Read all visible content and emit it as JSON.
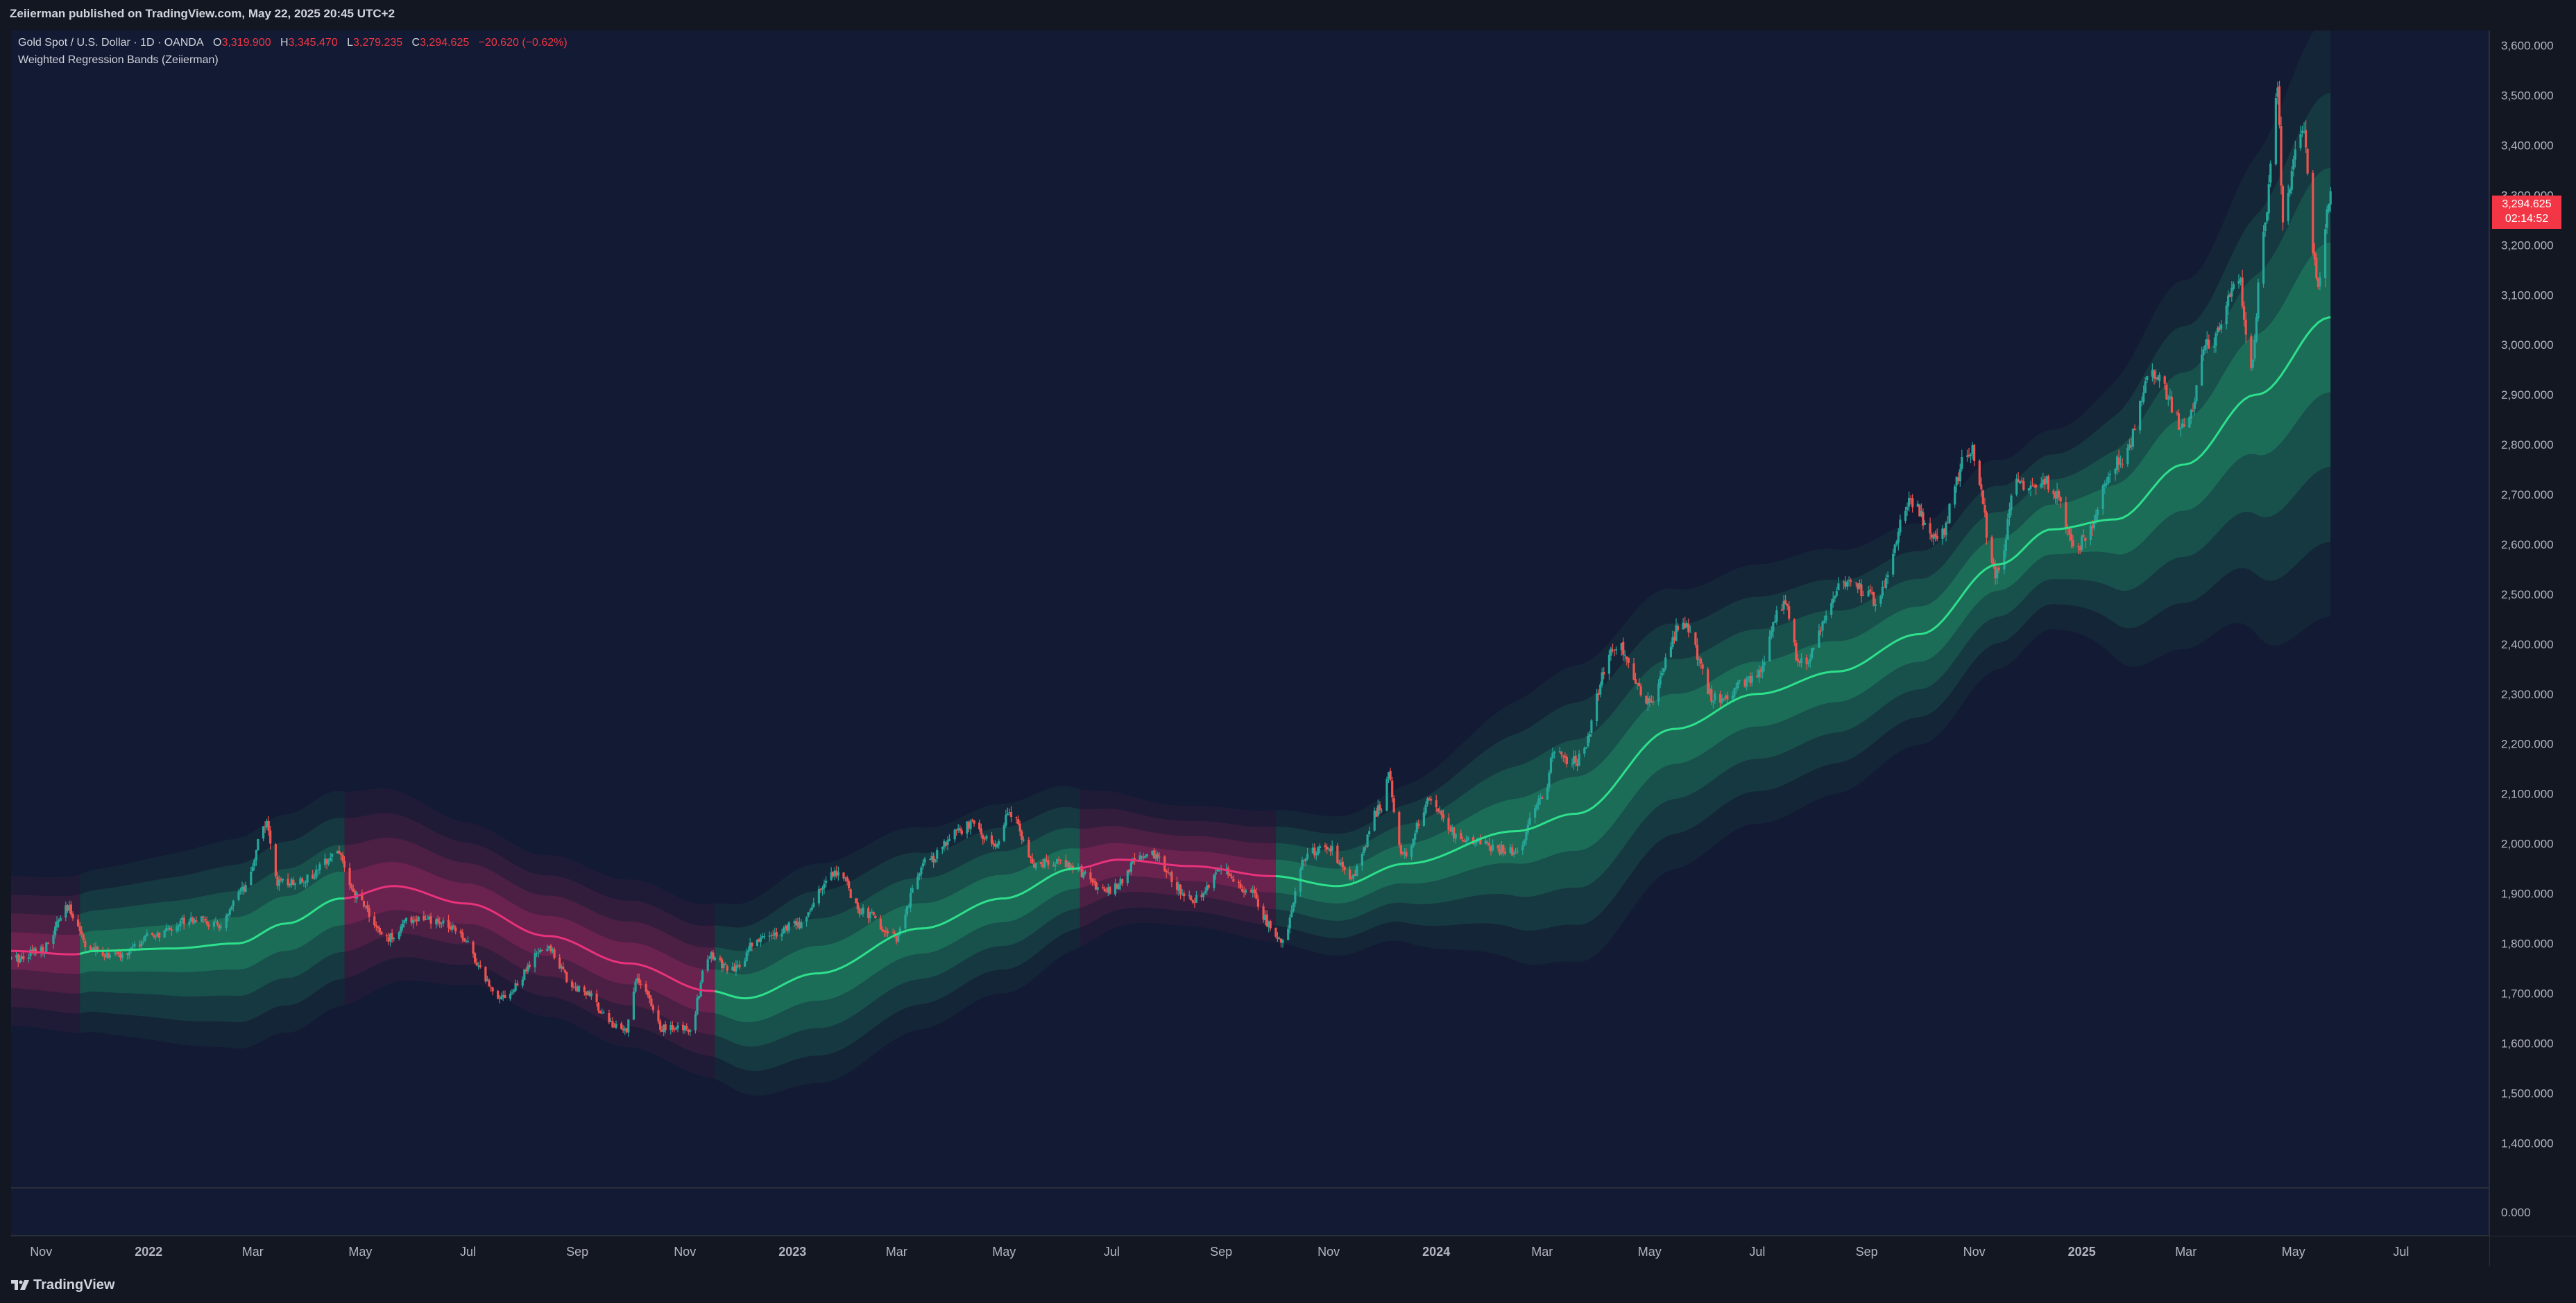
{
  "header": {
    "published": "Zeiierman published on TradingView.com, May 22, 2025 20:45 UTC+2"
  },
  "legend": {
    "symbol": "Gold Spot / U.S. Dollar · 1D · OANDA",
    "open_label": "O",
    "open": "3,319.900",
    "high_label": "H",
    "high": "3,345.470",
    "low_label": "L",
    "low": "3,279.235",
    "close_label": "C",
    "close": "3,294.625",
    "change": "−20.620 (−0.62%)",
    "indicator": "Weighted Regression Bands (Zeiierman)"
  },
  "price_label": {
    "price": "3,294.625",
    "countdown": "02:14:52"
  },
  "footer": {
    "brand": "TradingView"
  },
  "colors": {
    "background": "#131a33",
    "up": "#26a69a",
    "down": "#ef5350",
    "bull_line": "#2ee08c",
    "bear_line": "#e8337a",
    "price_tag": "#f23645"
  },
  "chart_data": {
    "type": "candlestick",
    "title": "Gold Spot / U.S. Dollar · 1D · OANDA",
    "y_axis": {
      "range": [
        1310,
        3630
      ],
      "ticks": [
        {
          "v": 1400,
          "label": "1,400.000"
        },
        {
          "v": 1500,
          "label": "1,500.000"
        },
        {
          "v": 1600,
          "label": "1,600.000"
        },
        {
          "v": 1700,
          "label": "1,700.000"
        },
        {
          "v": 1800,
          "label": "1,800.000"
        },
        {
          "v": 1900,
          "label": "1,900.000"
        },
        {
          "v": 2000,
          "label": "2,000.000"
        },
        {
          "v": 2100,
          "label": "2,100.000"
        },
        {
          "v": 2200,
          "label": "2,200.000"
        },
        {
          "v": 2300,
          "label": "2,300.000"
        },
        {
          "v": 2400,
          "label": "2,400.000"
        },
        {
          "v": 2500,
          "label": "2,500.000"
        },
        {
          "v": 2600,
          "label": "2,600.000"
        },
        {
          "v": 2700,
          "label": "2,700.000"
        },
        {
          "v": 2800,
          "label": "2,800.000"
        },
        {
          "v": 2900,
          "label": "2,900.000"
        },
        {
          "v": 3000,
          "label": "3,000.000"
        },
        {
          "v": 3100,
          "label": "3,100.000"
        },
        {
          "v": 3200,
          "label": "3,200.000"
        },
        {
          "v": 3300,
          "label": "3,300.000"
        },
        {
          "v": 3400,
          "label": "3,400.000"
        },
        {
          "v": 3500,
          "label": "3,500.000"
        },
        {
          "v": 3600,
          "label": "3,600.000"
        }
      ],
      "indicator_pane_label": "0.000"
    },
    "x_axis": {
      "range": [
        "2021-10-15",
        "2025-08-20"
      ],
      "ticks": [
        {
          "date": "2021-11-01",
          "label": "Nov"
        },
        {
          "date": "2022-01-01",
          "label": "2022",
          "bold": true
        },
        {
          "date": "2022-03-01",
          "label": "Mar"
        },
        {
          "date": "2022-05-01",
          "label": "May"
        },
        {
          "date": "2022-07-01",
          "label": "Jul"
        },
        {
          "date": "2022-09-01",
          "label": "Sep"
        },
        {
          "date": "2022-11-01",
          "label": "Nov"
        },
        {
          "date": "2023-01-01",
          "label": "2023",
          "bold": true
        },
        {
          "date": "2023-03-01",
          "label": "Mar"
        },
        {
          "date": "2023-05-01",
          "label": "May"
        },
        {
          "date": "2023-07-01",
          "label": "Jul"
        },
        {
          "date": "2023-09-01",
          "label": "Sep"
        },
        {
          "date": "2023-11-01",
          "label": "Nov"
        },
        {
          "date": "2024-01-01",
          "label": "2024",
          "bold": true
        },
        {
          "date": "2024-03-01",
          "label": "Mar"
        },
        {
          "date": "2024-05-01",
          "label": "May"
        },
        {
          "date": "2024-07-01",
          "label": "Jul"
        },
        {
          "date": "2024-09-01",
          "label": "Sep"
        },
        {
          "date": "2024-11-01",
          "label": "Nov"
        },
        {
          "date": "2025-01-01",
          "label": "2025",
          "bold": true
        },
        {
          "date": "2025-03-01",
          "label": "Mar"
        },
        {
          "date": "2025-05-01",
          "label": "May"
        },
        {
          "date": "2025-07-01",
          "label": "Jul"
        }
      ]
    },
    "price_path": [
      [
        "2021-10-15",
        1768
      ],
      [
        "2021-11-02",
        1790
      ],
      [
        "2021-11-16",
        1868
      ],
      [
        "2021-11-30",
        1785
      ],
      [
        "2021-12-15",
        1775
      ],
      [
        "2022-01-04",
        1815
      ],
      [
        "2022-01-25",
        1850
      ],
      [
        "2022-02-10",
        1835
      ],
      [
        "2022-02-24",
        1905
      ],
      [
        "2022-03-08",
        2040
      ],
      [
        "2022-03-16",
        1920
      ],
      [
        "2022-04-01",
        1930
      ],
      [
        "2022-04-18",
        1985
      ],
      [
        "2022-04-28",
        1895
      ],
      [
        "2022-05-16",
        1810
      ],
      [
        "2022-05-31",
        1850
      ],
      [
        "2022-06-20",
        1838
      ],
      [
        "2022-07-21",
        1695
      ],
      [
        "2022-08-15",
        1790
      ],
      [
        "2022-08-31",
        1712
      ],
      [
        "2022-09-28",
        1625
      ],
      [
        "2022-10-05",
        1725
      ],
      [
        "2022-10-20",
        1630
      ],
      [
        "2022-11-03",
        1630
      ],
      [
        "2022-11-15",
        1775
      ],
      [
        "2022-11-28",
        1745
      ],
      [
        "2022-12-13",
        1810
      ],
      [
        "2023-01-02",
        1835
      ],
      [
        "2023-01-26",
        1945
      ],
      [
        "2023-02-10",
        1863
      ],
      [
        "2023-02-28",
        1812
      ],
      [
        "2023-03-17",
        1960
      ],
      [
        "2023-04-04",
        2020
      ],
      [
        "2023-04-13",
        2040
      ],
      [
        "2023-04-26",
        1992
      ],
      [
        "2023-05-04",
        2060
      ],
      [
        "2023-05-18",
        1960
      ],
      [
        "2023-06-05",
        1960
      ],
      [
        "2023-06-29",
        1905
      ],
      [
        "2023-07-20",
        1980
      ],
      [
        "2023-08-18",
        1888
      ],
      [
        "2023-09-01",
        1945
      ],
      [
        "2023-09-14",
        1912
      ],
      [
        "2023-10-05",
        1810
      ],
      [
        "2023-10-20",
        1980
      ],
      [
        "2023-10-31",
        1995
      ],
      [
        "2023-11-13",
        1935
      ],
      [
        "2023-12-01",
        2072
      ],
      [
        "2023-12-04",
        2140
      ],
      [
        "2023-12-13",
        1978
      ],
      [
        "2023-12-28",
        2082
      ],
      [
        "2024-01-17",
        2005
      ],
      [
        "2024-02-14",
        1985
      ],
      [
        "2024-03-01",
        2085
      ],
      [
        "2024-03-08",
        2180
      ],
      [
        "2024-03-20",
        2165
      ],
      [
        "2024-04-12",
        2400
      ],
      [
        "2024-04-30",
        2285
      ],
      [
        "2024-05-20",
        2440
      ],
      [
        "2024-06-07",
        2290
      ],
      [
        "2024-06-28",
        2325
      ],
      [
        "2024-07-17",
        2480
      ],
      [
        "2024-07-25",
        2360
      ],
      [
        "2024-08-20",
        2525
      ],
      [
        "2024-09-06",
        2490
      ],
      [
        "2024-09-26",
        2685
      ],
      [
        "2024-10-10",
        2605
      ],
      [
        "2024-10-30",
        2790
      ],
      [
        "2024-11-14",
        2540
      ],
      [
        "2024-11-25",
        2720
      ],
      [
        "2024-12-12",
        2725
      ],
      [
        "2024-12-30",
        2600
      ],
      [
        "2025-01-23",
        2770
      ],
      [
        "2025-02-11",
        2940
      ],
      [
        "2025-02-28",
        2835
      ],
      [
        "2025-03-14",
        3000
      ],
      [
        "2025-03-31",
        3125
      ],
      [
        "2025-04-07",
        2955
      ],
      [
        "2025-04-14",
        3240
      ],
      [
        "2025-04-22",
        3500
      ],
      [
        "2025-04-25",
        3260
      ],
      [
        "2025-05-06",
        3430
      ],
      [
        "2025-05-15",
        3120
      ],
      [
        "2025-05-22",
        3295
      ]
    ],
    "regression_line": [
      [
        "2021-10-15",
        1785,
        "bear"
      ],
      [
        "2021-11-20",
        1778,
        "bear"
      ],
      [
        "2021-12-01",
        1785,
        "bull"
      ],
      [
        "2022-01-15",
        1790,
        "bull"
      ],
      [
        "2022-02-20",
        1800,
        "bull"
      ],
      [
        "2022-03-20",
        1840,
        "bull"
      ],
      [
        "2022-04-20",
        1890,
        "bull"
      ],
      [
        "2022-05-20",
        1915,
        "bear"
      ],
      [
        "2022-06-30",
        1880,
        "bear"
      ],
      [
        "2022-08-15",
        1815,
        "bear"
      ],
      [
        "2022-09-30",
        1760,
        "bear"
      ],
      [
        "2022-11-15",
        1705,
        "bear"
      ],
      [
        "2022-12-05",
        1690,
        "bull"
      ],
      [
        "2023-01-15",
        1740,
        "bull"
      ],
      [
        "2023-03-15",
        1830,
        "bull"
      ],
      [
        "2023-04-30",
        1890,
        "bull"
      ],
      [
        "2023-06-10",
        1950,
        "bull"
      ],
      [
        "2023-07-05",
        1968,
        "bear"
      ],
      [
        "2023-08-15",
        1955,
        "bear"
      ],
      [
        "2023-09-30",
        1935,
        "bear"
      ],
      [
        "2023-11-06",
        1915,
        "bull"
      ],
      [
        "2023-12-15",
        1960,
        "bull"
      ],
      [
        "2024-02-15",
        2025,
        "bull"
      ],
      [
        "2024-03-20",
        2060,
        "bull"
      ],
      [
        "2024-05-15",
        2230,
        "bull"
      ],
      [
        "2024-07-01",
        2300,
        "bull"
      ],
      [
        "2024-08-15",
        2345,
        "bull"
      ],
      [
        "2024-10-01",
        2420,
        "bull"
      ],
      [
        "2024-11-15",
        2560,
        "bull"
      ],
      [
        "2024-12-15",
        2630,
        "bull"
      ],
      [
        "2025-01-20",
        2650,
        "bull"
      ],
      [
        "2025-02-28",
        2760,
        "bull"
      ],
      [
        "2025-04-10",
        2900,
        "bull"
      ],
      [
        "2025-05-22",
        3055,
        "bull"
      ]
    ],
    "band_width": [
      [
        "2021-10-15",
        75
      ],
      [
        "2022-04-01",
        110
      ],
      [
        "2022-07-15",
        80
      ],
      [
        "2022-11-01",
        85
      ],
      [
        "2023-01-15",
        110
      ],
      [
        "2023-05-01",
        95
      ],
      [
        "2023-08-01",
        60
      ],
      [
        "2023-11-15",
        70
      ],
      [
        "2024-04-01",
        150
      ],
      [
        "2024-07-01",
        130
      ],
      [
        "2024-10-15",
        110
      ],
      [
        "2024-12-15",
        100
      ],
      [
        "2025-03-01",
        185
      ],
      [
        "2025-05-22",
        300
      ]
    ]
  }
}
